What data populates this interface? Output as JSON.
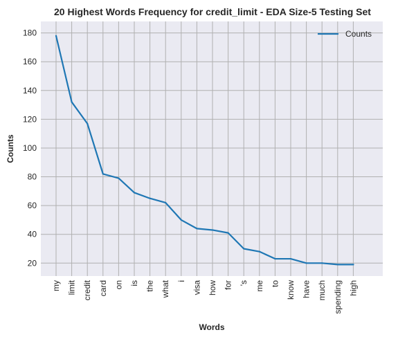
{
  "chart_data": {
    "type": "line",
    "title": "20 Highest Words Frequency for credit_limit - EDA Size-5 Testing Set",
    "xlabel": "Words",
    "ylabel": "Counts",
    "categories": [
      "my",
      "limit",
      "credit",
      "card",
      "on",
      "is",
      "the",
      "what",
      "i",
      "visa",
      "how",
      "for",
      "'s",
      "me",
      "to",
      "know",
      "have",
      "much",
      "spending",
      "high"
    ],
    "series": [
      {
        "name": "Counts",
        "values": [
          178,
          132,
          117,
          82,
          79,
          69,
          65,
          62,
          50,
          44,
          43,
          41,
          30,
          28,
          23,
          23,
          20,
          20,
          19,
          19
        ],
        "color": "#1f77b4"
      }
    ],
    "ylim": [
      11,
      188
    ],
    "yticks": [
      20,
      40,
      60,
      80,
      100,
      120,
      140,
      160,
      180
    ],
    "grid": true,
    "legend": "top-right",
    "background": "#eaeaf2",
    "grid_color": "#b0b0b0"
  }
}
